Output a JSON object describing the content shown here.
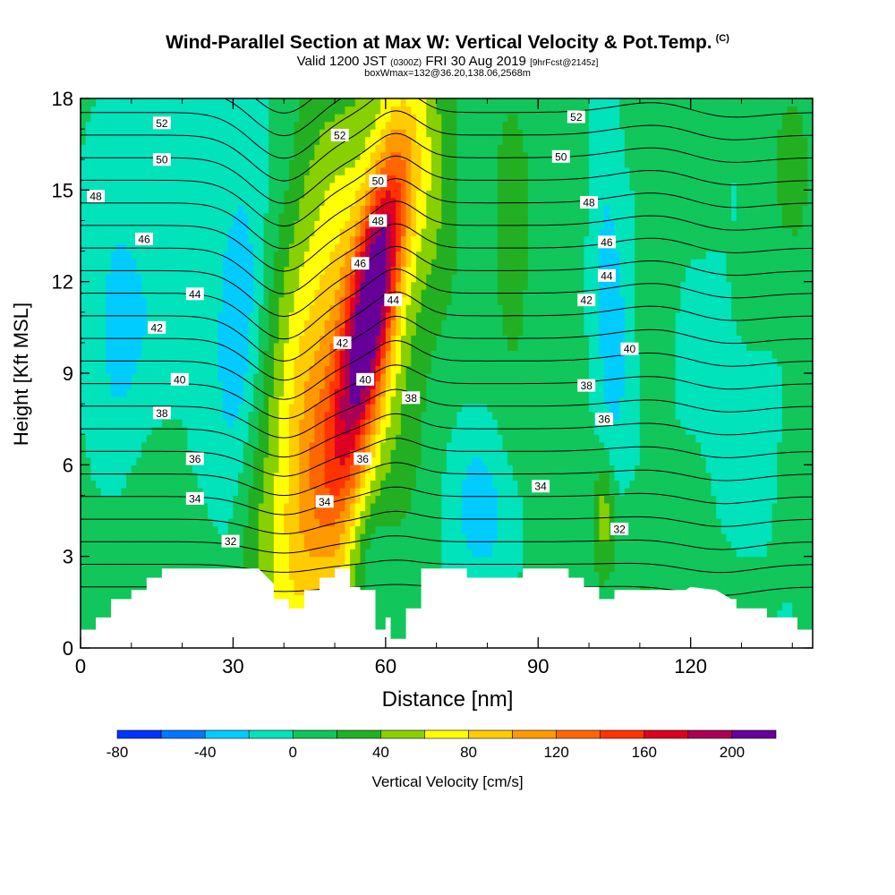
{
  "header": {
    "title": "Wind-Parallel Section at Max W: Vertical Velocity & Pot.Temp.",
    "title_mark": "(C)",
    "valid_prefix": "Valid 1200 JST",
    "valid_zulu": "(0300Z)",
    "valid_date": "FRI 30 Aug 2019",
    "forecast": "[9hrFcst@2145z]",
    "boxmax": "boxWmax=132@36.20,138.06,2568m"
  },
  "chart_data": {
    "type": "heatmap",
    "xlabel": "Distance [nm]",
    "ylabel": "Height [Kft MSL]",
    "xlim": [
      0,
      144
    ],
    "ylim": [
      0,
      18
    ],
    "x_ticks": [
      0,
      30,
      60,
      90,
      120
    ],
    "y_ticks": [
      0,
      3,
      6,
      9,
      12,
      15,
      18
    ],
    "grid": false,
    "colorbar": {
      "label": "Vertical Velocity [cm/s]",
      "tick_labels": [
        -80,
        -40,
        0,
        40,
        80,
        120,
        160,
        200
      ],
      "bins": [
        {
          "from": -80,
          "to": -60,
          "color": "#0033ff"
        },
        {
          "from": -60,
          "to": -40,
          "color": "#0077ff"
        },
        {
          "from": -40,
          "to": -20,
          "color": "#00ccff"
        },
        {
          "from": -20,
          "to": 0,
          "color": "#00e3bb"
        },
        {
          "from": 0,
          "to": 20,
          "color": "#11c65b"
        },
        {
          "from": 20,
          "to": 40,
          "color": "#22b022"
        },
        {
          "from": 40,
          "to": 60,
          "color": "#88d000"
        },
        {
          "from": 60,
          "to": 80,
          "color": "#ffff00"
        },
        {
          "from": 80,
          "to": 100,
          "color": "#ffcc00"
        },
        {
          "from": 100,
          "to": 120,
          "color": "#ff9900"
        },
        {
          "from": 120,
          "to": 140,
          "color": "#ff6600"
        },
        {
          "from": 140,
          "to": 160,
          "color": "#ff3300"
        },
        {
          "from": 160,
          "to": 180,
          "color": "#dd0022"
        },
        {
          "from": 180,
          "to": 200,
          "color": "#aa0055"
        },
        {
          "from": 200,
          "to": 220,
          "color": "#660099"
        }
      ]
    },
    "vertical_velocity_field": {
      "background": 5,
      "features": [
        {
          "x": 57.5,
          "y": 11.5,
          "sx": 3.2,
          "sy": 3.6,
          "amp": 160,
          "tilt": 0.9
        },
        {
          "x": 53,
          "y": 9.5,
          "sx": 9,
          "sy": 7.5,
          "amp": 70,
          "tilt": 0.9
        },
        {
          "x": 47,
          "y": 5.5,
          "sx": 7,
          "sy": 3.8,
          "amp": 45,
          "tilt": 0.6
        },
        {
          "x": 45,
          "y": 12,
          "sx": 5.5,
          "sy": 5,
          "amp": 25,
          "tilt": 0.3
        },
        {
          "x": 31,
          "y": 10,
          "sx": 3.5,
          "sy": 6,
          "amp": -35,
          "tilt": 0.3
        },
        {
          "x": 7,
          "y": 10,
          "sx": 4,
          "sy": 3,
          "amp": -25,
          "tilt": 0
        },
        {
          "x": 15,
          "y": 13,
          "sx": 10,
          "sy": 4,
          "amp": -15,
          "tilt": 0
        },
        {
          "x": 80,
          "y": 4.5,
          "sx": 5.5,
          "sy": 2.2,
          "amp": -35,
          "tilt": 0
        },
        {
          "x": 57,
          "y": 3,
          "sx": 2.5,
          "sy": 1.6,
          "amp": -30,
          "tilt": 0
        },
        {
          "x": 105,
          "y": 9.5,
          "sx": 2.5,
          "sy": 3.5,
          "amp": -30,
          "tilt": 0
        },
        {
          "x": 103,
          "y": 15,
          "sx": 2,
          "sy": 3,
          "amp": -20,
          "tilt": 0
        },
        {
          "x": 85,
          "y": 12,
          "sx": 3.5,
          "sy": 5,
          "amp": 22,
          "tilt": 0
        },
        {
          "x": 68,
          "y": 15,
          "sx": 4,
          "sy": 3,
          "amp": 20,
          "tilt": 0
        },
        {
          "x": 103,
          "y": 4.5,
          "sx": 1.3,
          "sy": 1.2,
          "amp": 42,
          "tilt": 0
        },
        {
          "x": 110,
          "y": 2,
          "sx": 14,
          "sy": 2,
          "amp": 15,
          "tilt": 0
        },
        {
          "x": 15,
          "y": 2,
          "sx": 20,
          "sy": 2.5,
          "amp": 12,
          "tilt": 0
        },
        {
          "x": 130,
          "y": 7,
          "sx": 10,
          "sy": 5,
          "amp": -12,
          "tilt": 0
        },
        {
          "x": 140,
          "y": 15,
          "sx": 5,
          "sy": 4,
          "amp": 18,
          "tilt": 0
        }
      ]
    },
    "terrain_profile": [
      [
        0,
        0.6
      ],
      [
        3,
        0.6
      ],
      [
        3,
        1.0
      ],
      [
        6,
        1.0
      ],
      [
        6,
        1.6
      ],
      [
        10,
        1.6
      ],
      [
        10,
        1.9
      ],
      [
        13,
        1.9
      ],
      [
        13,
        2.3
      ],
      [
        16,
        2.3
      ],
      [
        16,
        2.6
      ],
      [
        26,
        2.6
      ],
      [
        29,
        2.6
      ],
      [
        35,
        2.6
      ],
      [
        38,
        2.1
      ],
      [
        38,
        1.6
      ],
      [
        41,
        1.6
      ],
      [
        41,
        1.3
      ],
      [
        44,
        1.3
      ],
      [
        44,
        1.9
      ],
      [
        47,
        1.9
      ],
      [
        47,
        2.3
      ],
      [
        50,
        2.3
      ],
      [
        50,
        2.6
      ],
      [
        53,
        2.6
      ],
      [
        53,
        2.0
      ],
      [
        55,
        2.0
      ],
      [
        55,
        1.9
      ],
      [
        58,
        1.9
      ],
      [
        58,
        0.6
      ],
      [
        60,
        0.6
      ],
      [
        60,
        1.0
      ],
      [
        61,
        1.0
      ],
      [
        61,
        0.3
      ],
      [
        64,
        0.3
      ],
      [
        64,
        1.3
      ],
      [
        67,
        1.3
      ],
      [
        67,
        2.6
      ],
      [
        73,
        2.6
      ],
      [
        76,
        2.6
      ],
      [
        76,
        2.3
      ],
      [
        87,
        2.3
      ],
      [
        87,
        2.6
      ],
      [
        96,
        2.6
      ],
      [
        96,
        2.3
      ],
      [
        99,
        2.3
      ],
      [
        99,
        2.0
      ],
      [
        102,
        2.0
      ],
      [
        102,
        1.6
      ],
      [
        105,
        1.6
      ],
      [
        105,
        1.9
      ],
      [
        119,
        1.9
      ],
      [
        120,
        2.0
      ],
      [
        125,
        1.9
      ],
      [
        128,
        1.6
      ],
      [
        129,
        1.6
      ],
      [
        129,
        1.3
      ],
      [
        135,
        1.3
      ],
      [
        135,
        1.0
      ],
      [
        141,
        1.0
      ],
      [
        141,
        0.6
      ],
      [
        144,
        0.6
      ]
    ],
    "isentropes": {
      "label": "Pot.Temp.",
      "levels": [
        31,
        32,
        33,
        34,
        35,
        36,
        37,
        38,
        39,
        40,
        41,
        42,
        43,
        44,
        45,
        46,
        47,
        48,
        49,
        50,
        51,
        52,
        53,
        54
      ],
      "labels": [
        {
          "text": "52",
          "x": 16,
          "y": 17.2
        },
        {
          "text": "50",
          "x": 16,
          "y": 16.0
        },
        {
          "text": "48",
          "x": 3,
          "y": 14.8
        },
        {
          "text": "46",
          "x": 12.5,
          "y": 13.4
        },
        {
          "text": "44",
          "x": 22.5,
          "y": 11.6
        },
        {
          "text": "42",
          "x": 15,
          "y": 10.5
        },
        {
          "text": "40",
          "x": 19.5,
          "y": 8.8
        },
        {
          "text": "38",
          "x": 16,
          "y": 7.7
        },
        {
          "text": "36",
          "x": 22.5,
          "y": 6.2
        },
        {
          "text": "34",
          "x": 22.5,
          "y": 4.9
        },
        {
          "text": "32",
          "x": 29.5,
          "y": 3.5
        },
        {
          "text": "52",
          "x": 51,
          "y": 16.8
        },
        {
          "text": "50",
          "x": 58.5,
          "y": 15.3
        },
        {
          "text": "48",
          "x": 58.5,
          "y": 14.0
        },
        {
          "text": "46",
          "x": 55,
          "y": 12.6
        },
        {
          "text": "44",
          "x": 61.5,
          "y": 11.4
        },
        {
          "text": "42",
          "x": 51.5,
          "y": 10.0
        },
        {
          "text": "40",
          "x": 56,
          "y": 8.8
        },
        {
          "text": "38",
          "x": 65,
          "y": 8.2
        },
        {
          "text": "36",
          "x": 55.5,
          "y": 6.2
        },
        {
          "text": "34",
          "x": 48,
          "y": 4.8
        },
        {
          "text": "52",
          "x": 97.5,
          "y": 17.4
        },
        {
          "text": "50",
          "x": 94.5,
          "y": 16.1
        },
        {
          "text": "48",
          "x": 100,
          "y": 14.6
        },
        {
          "text": "46",
          "x": 103.5,
          "y": 13.3
        },
        {
          "text": "44",
          "x": 103.5,
          "y": 12.2
        },
        {
          "text": "42",
          "x": 99.5,
          "y": 11.4
        },
        {
          "text": "40",
          "x": 108,
          "y": 9.8
        },
        {
          "text": "38",
          "x": 99.5,
          "y": 8.6
        },
        {
          "text": "36",
          "x": 103,
          "y": 7.5
        },
        {
          "text": "34",
          "x": 90.5,
          "y": 5.3
        },
        {
          "text": "32",
          "x": 106,
          "y": 3.9
        }
      ]
    }
  }
}
